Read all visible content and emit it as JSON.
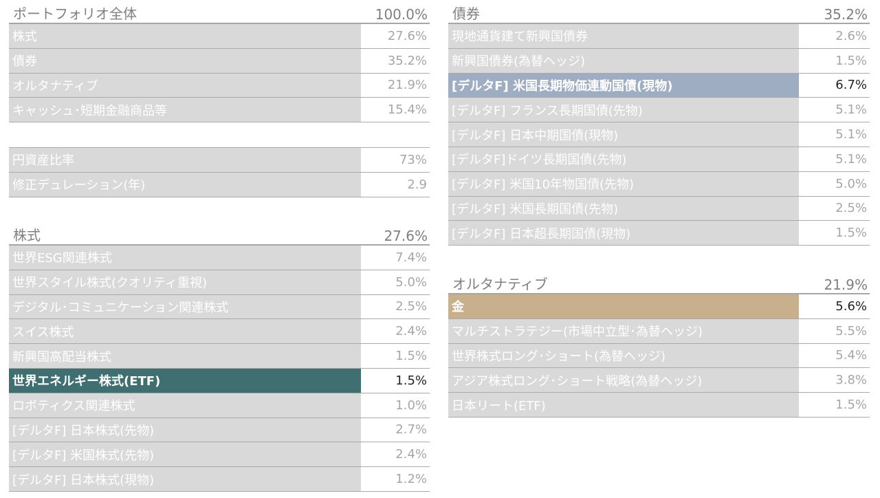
{
  "colors": {
    "teal": "#3f6f70",
    "blue": "#9eadc2",
    "gold": "#c8b08c",
    "row_bg": "#d9d9d9"
  },
  "portfolio": {
    "title": "ポートフォリオ全体",
    "total": "100.0%",
    "rows": [
      {
        "label": "株式",
        "value": "27.6%"
      },
      {
        "label": "債券",
        "value": "35.2%"
      },
      {
        "label": "オルタナティブ",
        "value": "21.9%"
      },
      {
        "label": "キャッシュ･短期金融商品等",
        "value": "15.4%"
      }
    ]
  },
  "metrics": {
    "rows": [
      {
        "label": "円資産比率",
        "value": "73%"
      },
      {
        "label": "修正デュレーション(年)",
        "value": "2.9"
      }
    ]
  },
  "equity": {
    "title": "株式",
    "total": "27.6%",
    "rows": [
      {
        "label": "世界ESG関連株式",
        "value": "7.4%"
      },
      {
        "label": "世界スタイル株式(クオリティ重視)",
        "value": "5.0%"
      },
      {
        "label": "デジタル･コミュニケーション関連株式",
        "value": "2.5%"
      },
      {
        "label": "スイス株式",
        "value": "2.4%"
      },
      {
        "label": "新興国高配当株式",
        "value": "1.5%"
      },
      {
        "label": "世界エネルギー株式(ETF)",
        "value": "1.5%",
        "highlight": "teal"
      },
      {
        "label": "ロボティクス関連株式",
        "value": "1.0%"
      },
      {
        "label": "[デルタF] 日本株式(先物)",
        "value": "2.7%"
      },
      {
        "label": "[デルタF] 米国株式(先物)",
        "value": "2.4%"
      },
      {
        "label": "[デルタF] 日本株式(現物)",
        "value": "1.2%"
      }
    ]
  },
  "bonds": {
    "title": "債券",
    "total": "35.2%",
    "rows": [
      {
        "label": "現地通貨建て新興国債券",
        "value": "2.6%"
      },
      {
        "label": "新興国債券(為替ヘッジ)",
        "value": "1.5%"
      },
      {
        "label": "[デルタF] 米国長期物価連動国債(現物)",
        "value": "6.7%",
        "highlight": "blue"
      },
      {
        "label": "[デルタF] フランス長期国債(先物)",
        "value": "5.1%"
      },
      {
        "label": "[デルタF] 日本中期国債(現物)",
        "value": "5.1%"
      },
      {
        "label": "[デルタF]ドイツ長期国債(先物)",
        "value": "5.1%"
      },
      {
        "label": "[デルタF] 米国10年物国債(先物)",
        "value": "5.0%"
      },
      {
        "label": "[デルタF] 米国長期国債(先物)",
        "value": "2.5%"
      },
      {
        "label": "[デルタF] 日本超長期国債(現物)",
        "value": "1.5%"
      }
    ]
  },
  "alternatives": {
    "title": "オルタナティブ",
    "total": "21.9%",
    "rows": [
      {
        "label": "金",
        "value": "5.6%",
        "highlight": "gold"
      },
      {
        "label": "マルチストラテジー(市場中立型･為替ヘッジ)",
        "value": "5.5%"
      },
      {
        "label": "世界株式ロング･ショート(為替ヘッジ)",
        "value": "5.4%"
      },
      {
        "label": "アジア株式ロング･ショート戦略(為替ヘッジ)",
        "value": "3.8%"
      },
      {
        "label": "日本リート(ETF)",
        "value": "1.5%"
      }
    ]
  }
}
